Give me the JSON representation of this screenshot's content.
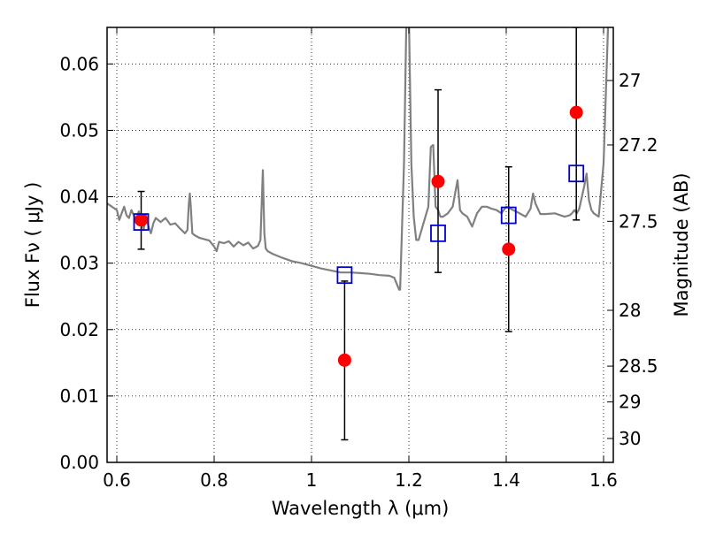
{
  "chart_data": {
    "type": "scatter",
    "xlabel": "Wavelength  λ (μm)",
    "ylabel": "Flux  Fν  ( μJy )",
    "ylabel_right": "Magnitude (AB)",
    "xlim": [
      0.58,
      1.62
    ],
    "ylim": [
      0.0,
      0.0655
    ],
    "grid": true,
    "x_ticks": [
      0.6,
      0.8,
      1.0,
      1.2,
      1.4,
      1.6
    ],
    "x_tick_labels": [
      "0.6",
      "0.8",
      "1",
      "1.2",
      "1.4",
      "1.6"
    ],
    "y_ticks": [
      0.0,
      0.01,
      0.02,
      0.03,
      0.04,
      0.05,
      0.06
    ],
    "y_tick_labels": [
      "0.00",
      "0.01",
      "0.02",
      "0.03",
      "0.04",
      "0.05",
      "0.06"
    ],
    "right_ticks": [
      {
        "flux": 0.0575,
        "label": "27"
      },
      {
        "flux": 0.0478,
        "label": "27.2"
      },
      {
        "flux": 0.0363,
        "label": "27.5"
      },
      {
        "flux": 0.0229,
        "label": "28"
      },
      {
        "flux": 0.0145,
        "label": "28.5"
      },
      {
        "flux": 0.0091,
        "label": "29"
      },
      {
        "flux": 0.0036,
        "label": "30"
      }
    ],
    "series": [
      {
        "name": "model_spectrum",
        "kind": "line",
        "color": "#808080",
        "x": [
          0.58,
          0.59,
          0.6,
          0.605,
          0.61,
          0.615,
          0.62,
          0.625,
          0.63,
          0.635,
          0.64,
          0.645,
          0.65,
          0.655,
          0.66,
          0.665,
          0.67,
          0.675,
          0.68,
          0.69,
          0.7,
          0.71,
          0.72,
          0.73,
          0.74,
          0.745,
          0.748,
          0.75,
          0.752,
          0.755,
          0.76,
          0.77,
          0.78,
          0.79,
          0.8,
          0.805,
          0.81,
          0.82,
          0.83,
          0.84,
          0.85,
          0.86,
          0.87,
          0.88,
          0.89,
          0.895,
          0.9,
          0.903,
          0.906,
          0.91,
          0.92,
          0.94,
          0.96,
          0.98,
          1.0,
          1.02,
          1.04,
          1.06,
          1.08,
          1.1,
          1.12,
          1.14,
          1.16,
          1.17,
          1.18,
          1.182,
          1.19,
          1.195,
          1.2,
          1.205,
          1.21,
          1.215,
          1.22,
          1.23,
          1.24,
          1.245,
          1.25,
          1.255,
          1.26,
          1.265,
          1.27,
          1.28,
          1.29,
          1.3,
          1.305,
          1.31,
          1.32,
          1.33,
          1.34,
          1.35,
          1.36,
          1.37,
          1.38,
          1.39,
          1.4,
          1.42,
          1.44,
          1.45,
          1.455,
          1.46,
          1.47,
          1.48,
          1.5,
          1.52,
          1.53,
          1.535,
          1.54,
          1.545,
          1.55,
          1.56,
          1.565,
          1.57,
          1.575,
          1.58,
          1.59,
          1.6,
          1.61
        ],
        "y": [
          0.039,
          0.0385,
          0.038,
          0.0365,
          0.0375,
          0.0385,
          0.0372,
          0.0368,
          0.038,
          0.0372,
          0.0365,
          0.0378,
          0.0365,
          0.035,
          0.0372,
          0.0355,
          0.0345,
          0.036,
          0.0368,
          0.0362,
          0.0368,
          0.0358,
          0.036,
          0.0352,
          0.0345,
          0.035,
          0.039,
          0.0405,
          0.0385,
          0.0345,
          0.0342,
          0.0338,
          0.0336,
          0.0334,
          0.0325,
          0.0318,
          0.0332,
          0.033,
          0.0333,
          0.0325,
          0.0332,
          0.0327,
          0.0331,
          0.0322,
          0.0326,
          0.0335,
          0.044,
          0.0345,
          0.0322,
          0.0318,
          0.0314,
          0.0308,
          0.0303,
          0.03,
          0.0296,
          0.0292,
          0.0289,
          0.0286,
          0.0286,
          0.0285,
          0.0284,
          0.0282,
          0.0281,
          0.0278,
          0.026,
          0.026,
          0.045,
          0.0675,
          0.0675,
          0.045,
          0.037,
          0.0335,
          0.0335,
          0.036,
          0.0385,
          0.0475,
          0.0478,
          0.0385,
          0.038,
          0.037,
          0.037,
          0.0375,
          0.0385,
          0.0425,
          0.038,
          0.0375,
          0.037,
          0.0355,
          0.0375,
          0.0385,
          0.0385,
          0.0382,
          0.038,
          0.0375,
          0.0385,
          0.0378,
          0.037,
          0.0382,
          0.0405,
          0.039,
          0.0374,
          0.0374,
          0.0375,
          0.037,
          0.0372,
          0.0375,
          0.038,
          0.0375,
          0.0382,
          0.0415,
          0.0435,
          0.0395,
          0.038,
          0.0375,
          0.037,
          0.045,
          0.0675
        ]
      },
      {
        "name": "model_photometry",
        "kind": "open-square",
        "color": "#0000cc",
        "x": [
          0.65,
          1.068,
          1.26,
          1.405,
          1.544
        ],
        "y": [
          0.0362,
          0.0282,
          0.0345,
          0.0372,
          0.0435
        ]
      },
      {
        "name": "observed_photometry",
        "kind": "filled-circle",
        "color": "#ff0000",
        "x": [
          0.65,
          1.068,
          1.26,
          1.405,
          1.544
        ],
        "y": [
          0.0365,
          0.0154,
          0.0423,
          0.0321,
          0.0527
        ],
        "yerr_low": [
          0.0321,
          0.0034,
          0.0286,
          0.0197,
          0.0365
        ],
        "yerr_high": [
          0.0408,
          0.0273,
          0.0561,
          0.0445,
          0.0655
        ]
      }
    ]
  }
}
